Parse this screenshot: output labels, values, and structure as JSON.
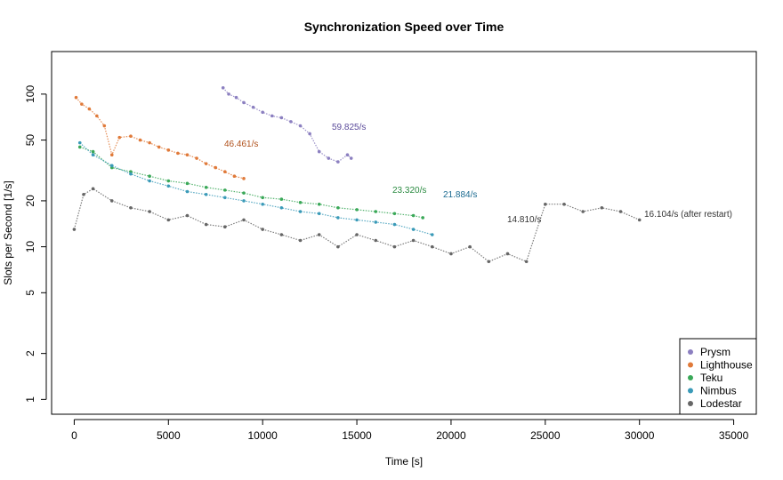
{
  "chart_data": {
    "type": "scatter",
    "title": "Synchronization Speed over Time",
    "xlabel": "Time [s]",
    "ylabel": "Slots per Second [1/s]",
    "xlim": [
      -1200,
      36200
    ],
    "ylim": [
      0.8,
      190
    ],
    "yscale": "log",
    "xticks": [
      0,
      5000,
      10000,
      15000,
      20000,
      25000,
      30000,
      35000
    ],
    "xtick_labels": [
      "0",
      "5000",
      "10000",
      "15000",
      "20000",
      "25000",
      "30000",
      "35000"
    ],
    "yticks": [
      1,
      2,
      5,
      10,
      20,
      50,
      100
    ],
    "ytick_labels": [
      "1",
      "2",
      "5",
      "10",
      "20",
      "50",
      "100"
    ],
    "grid": false,
    "legend_position": "bottom-right",
    "series": [
      {
        "name": "Prysm",
        "color": "#8b7fc0",
        "x": [
          7900,
          8200,
          8600,
          9000,
          9500,
          10000,
          10500,
          11000,
          11500,
          12000,
          12500,
          13000,
          13500,
          14000,
          14500,
          14700
        ],
        "y": [
          110,
          100,
          95,
          88,
          82,
          76,
          72,
          70,
          66,
          62,
          55,
          42,
          38,
          36,
          40,
          38
        ],
        "annotation": "59.825/s",
        "annotation_color": "#5a4a9a"
      },
      {
        "name": "Lighthouse",
        "color": "#e07a3a",
        "x": [
          100,
          400,
          800,
          1200,
          1600,
          2000,
          2400,
          3000,
          3500,
          4000,
          4500,
          5000,
          5500,
          6000,
          6500,
          7000,
          7500,
          8000,
          8500,
          9000
        ],
        "y": [
          95,
          86,
          80,
          72,
          62,
          40,
          52,
          53,
          50,
          48,
          45,
          43,
          41,
          40,
          38,
          35,
          33,
          31,
          29,
          28
        ],
        "annotation": "46.461/s",
        "annotation_color": "#b0501a"
      },
      {
        "name": "Teku",
        "color": "#3aa858",
        "x": [
          300,
          1000,
          2000,
          3000,
          4000,
          5000,
          6000,
          7000,
          8000,
          9000,
          10000,
          11000,
          12000,
          13000,
          14000,
          15000,
          16000,
          17000,
          18000,
          18500
        ],
        "y": [
          45,
          42,
          33,
          31,
          29,
          27,
          26,
          24.5,
          23.5,
          22.5,
          21,
          20.5,
          19.5,
          19,
          18,
          17.5,
          17,
          16.5,
          16,
          15.5
        ],
        "annotation": "23.320/s",
        "annotation_color": "#2a8a40"
      },
      {
        "name": "Nimbus",
        "color": "#3a9ab8",
        "x": [
          300,
          1000,
          2000,
          3000,
          4000,
          5000,
          6000,
          7000,
          8000,
          9000,
          10000,
          11000,
          12000,
          13000,
          14000,
          15000,
          16000,
          17000,
          18000,
          19000
        ],
        "y": [
          48,
          40,
          34,
          30,
          27,
          25,
          23,
          22,
          21,
          20,
          19,
          18,
          17,
          16.5,
          15.5,
          15,
          14.5,
          14,
          13,
          12
        ],
        "annotation": "21.884/s",
        "annotation_color": "#1a6a90"
      },
      {
        "name": "Lodestar",
        "color": "#666666",
        "x": [
          0,
          500,
          1000,
          2000,
          3000,
          4000,
          5000,
          6000,
          7000,
          8000,
          9000,
          10000,
          11000,
          12000,
          13000,
          14000,
          15000,
          16000,
          17000,
          18000,
          19000,
          20000,
          21000,
          22000,
          23000,
          24000,
          25000,
          26000,
          27000,
          28000,
          29000,
          30000
        ],
        "y": [
          13,
          22,
          24,
          20,
          18,
          17,
          15,
          16,
          14,
          13.5,
          15,
          13,
          12,
          11,
          12,
          10,
          12,
          11,
          10,
          11,
          10,
          9,
          10,
          8,
          9,
          8,
          19,
          19,
          17,
          18,
          17,
          15
        ],
        "annotation": "14.810/s",
        "annotation_color": "#333333",
        "annotation2": "16.104/s (after restart)"
      }
    ]
  }
}
